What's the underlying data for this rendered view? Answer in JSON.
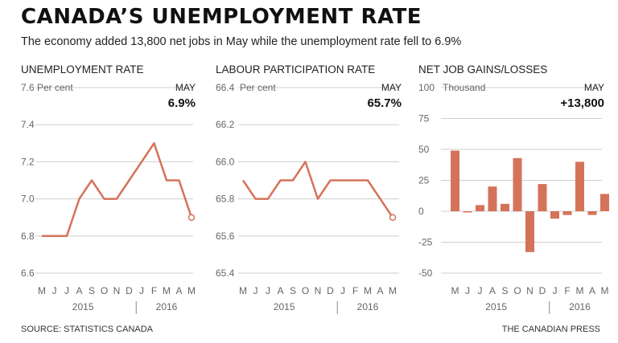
{
  "title": "CANADA’S UNEMPLOYMENT RATE",
  "subtitle": "The economy added 13,800 net jobs in May while the unemployment rate fell to 6.9%",
  "footer": {
    "source": "SOURCE: STATISTICS CANADA",
    "credit": "THE CANADIAN PRESS"
  },
  "colors": {
    "series": "#d4735a",
    "grid": "#cfcfcf",
    "axis_text": "#666666",
    "text": "#222222"
  },
  "chart_data": [
    {
      "type": "line",
      "title": "UNEMPLOYMENT RATE",
      "unit_label": "Per cent",
      "callout_label": "MAY",
      "callout_value": "6.9%",
      "x": [
        "M",
        "J",
        "J",
        "A",
        "S",
        "O",
        "N",
        "D",
        "J",
        "F",
        "M",
        "A",
        "M"
      ],
      "year_labels": [
        "2015",
        "2016"
      ],
      "values": [
        6.8,
        6.8,
        6.8,
        7.0,
        7.1,
        7.0,
        7.0,
        7.1,
        7.2,
        7.3,
        7.1,
        7.1,
        6.9
      ],
      "ylim": [
        6.6,
        7.6
      ],
      "yticks": [
        "7.6",
        "7.4",
        "7.2",
        "7.0",
        "6.8",
        "6.6"
      ],
      "grid": true
    },
    {
      "type": "line",
      "title": "LABOUR PARTICIPATION RATE",
      "unit_label": "Per cent",
      "callout_label": "MAY",
      "callout_value": "65.7%",
      "x": [
        "M",
        "J",
        "J",
        "A",
        "S",
        "O",
        "N",
        "D",
        "J",
        "F",
        "M",
        "A",
        "M"
      ],
      "year_labels": [
        "2015",
        "2016"
      ],
      "values": [
        65.9,
        65.8,
        65.8,
        65.9,
        65.9,
        66.0,
        65.8,
        65.9,
        65.9,
        65.9,
        65.9,
        65.8,
        65.7
      ],
      "ylim": [
        65.4,
        66.4
      ],
      "yticks": [
        "66.4",
        "66.2",
        "66.0",
        "65.8",
        "65.6",
        "65.4"
      ],
      "grid": true
    },
    {
      "type": "bar",
      "title": "NET JOB GAINS/LOSSES",
      "unit_label": "Thousand",
      "callout_label": "MAY",
      "callout_value": "+13,800",
      "x": [
        "M",
        "J",
        "J",
        "A",
        "S",
        "O",
        "N",
        "D",
        "J",
        "F",
        "M",
        "A",
        "M"
      ],
      "year_labels": [
        "2015",
        "2016"
      ],
      "values": [
        49,
        -1,
        5,
        20,
        6,
        43,
        -33,
        22,
        -6,
        -3,
        40,
        -3,
        14
      ],
      "ylim": [
        -50,
        100
      ],
      "yticks": [
        "100",
        "75",
        "50",
        "25",
        "0",
        "-25",
        "-50"
      ],
      "grid": true
    }
  ]
}
